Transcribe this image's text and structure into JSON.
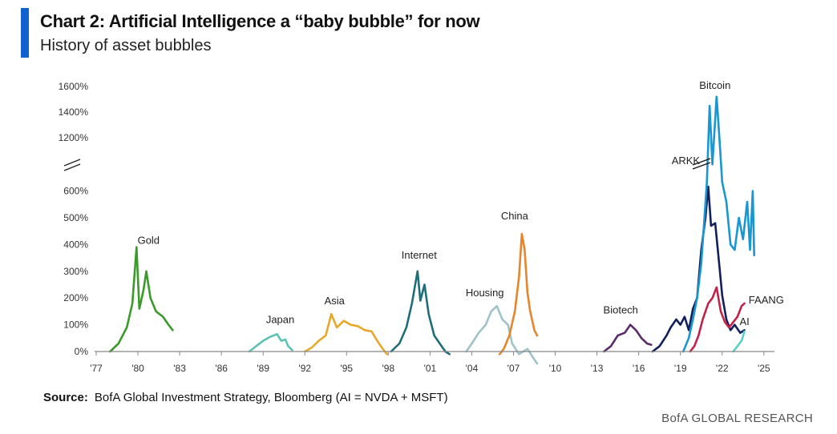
{
  "chart_data": {
    "type": "line",
    "title": "Chart 2: Artificial Intelligence a “baby bubble” for now",
    "subtitle": "History of asset bubbles",
    "xlabel": "",
    "ylabel": "",
    "x_ticks": [
      "'77",
      "'80",
      "'83",
      "'86",
      "'89",
      "'92",
      "'95",
      "'98",
      "'01",
      "'04",
      "'07",
      "'10",
      "'13",
      "'16",
      "'19",
      "'22",
      "'25"
    ],
    "xlim": [
      1977,
      2026
    ],
    "y_ticks": [
      "0%",
      "100%",
      "200%",
      "300%",
      "400%",
      "500%",
      "600%",
      "1200%",
      "1400%",
      "1600%"
    ],
    "y_axis_break": "between 600% and 1200%",
    "series": [
      {
        "name": "Gold",
        "color": "#3a9a2a",
        "points": [
          [
            1978.0,
            0
          ],
          [
            1978.6,
            30
          ],
          [
            1979.2,
            90
          ],
          [
            1979.6,
            180
          ],
          [
            1979.9,
            390
          ],
          [
            1980.1,
            160
          ],
          [
            1980.4,
            230
          ],
          [
            1980.6,
            300
          ],
          [
            1980.9,
            200
          ],
          [
            1981.3,
            150
          ],
          [
            1981.8,
            130
          ],
          [
            1982.2,
            100
          ],
          [
            1982.5,
            80
          ]
        ]
      },
      {
        "name": "Japan",
        "color": "#5bc2b4",
        "points": [
          [
            1988.0,
            0
          ],
          [
            1988.5,
            20
          ],
          [
            1989.0,
            40
          ],
          [
            1989.5,
            55
          ],
          [
            1990.0,
            65
          ],
          [
            1990.3,
            40
          ],
          [
            1990.6,
            45
          ],
          [
            1990.8,
            20
          ],
          [
            1991.1,
            5
          ]
        ]
      },
      {
        "name": "Asia",
        "color": "#e7a82a",
        "points": [
          [
            1992.0,
            0
          ],
          [
            1992.5,
            15
          ],
          [
            1993.0,
            40
          ],
          [
            1993.5,
            60
          ],
          [
            1993.9,
            140
          ],
          [
            1994.3,
            90
          ],
          [
            1994.8,
            115
          ],
          [
            1995.3,
            100
          ],
          [
            1995.8,
            95
          ],
          [
            1996.3,
            80
          ],
          [
            1996.8,
            75
          ],
          [
            1997.2,
            40
          ],
          [
            1997.6,
            10
          ],
          [
            1997.9,
            -10
          ]
        ]
      },
      {
        "name": "Internet",
        "color": "#1e6e7a",
        "points": [
          [
            1998.2,
            0
          ],
          [
            1998.8,
            30
          ],
          [
            1999.3,
            90
          ],
          [
            1999.7,
            180
          ],
          [
            2000.1,
            300
          ],
          [
            2000.3,
            190
          ],
          [
            2000.6,
            250
          ],
          [
            2000.9,
            140
          ],
          [
            2001.3,
            60
          ],
          [
            2001.7,
            30
          ],
          [
            2002.1,
            0
          ],
          [
            2002.4,
            -10
          ]
        ]
      },
      {
        "name": "Housing",
        "color": "#9fc3c8",
        "points": [
          [
            2003.6,
            0
          ],
          [
            2004.0,
            30
          ],
          [
            2004.5,
            70
          ],
          [
            2005.0,
            100
          ],
          [
            2005.4,
            150
          ],
          [
            2005.8,
            170
          ],
          [
            2006.2,
            120
          ],
          [
            2006.6,
            100
          ],
          [
            2006.9,
            30
          ],
          [
            2007.4,
            -10
          ],
          [
            2008.0,
            10
          ],
          [
            2008.5,
            -30
          ],
          [
            2008.7,
            -45
          ]
        ]
      },
      {
        "name": "China",
        "color": "#e8842c",
        "points": [
          [
            2006.0,
            -10
          ],
          [
            2006.3,
            10
          ],
          [
            2006.7,
            60
          ],
          [
            2007.1,
            150
          ],
          [
            2007.4,
            280
          ],
          [
            2007.6,
            440
          ],
          [
            2007.8,
            380
          ],
          [
            2008.0,
            220
          ],
          [
            2008.2,
            150
          ],
          [
            2008.5,
            80
          ],
          [
            2008.7,
            60
          ]
        ]
      },
      {
        "name": "Biotech",
        "color": "#5a2d6a",
        "points": [
          [
            2013.5,
            0
          ],
          [
            2014.0,
            20
          ],
          [
            2014.5,
            60
          ],
          [
            2015.0,
            70
          ],
          [
            2015.4,
            100
          ],
          [
            2015.8,
            80
          ],
          [
            2016.2,
            50
          ],
          [
            2016.6,
            30
          ],
          [
            2016.9,
            25
          ]
        ]
      },
      {
        "name": "ARKK",
        "color": "#13205c",
        "points": [
          [
            2017.0,
            0
          ],
          [
            2017.5,
            20
          ],
          [
            2018.0,
            60
          ],
          [
            2018.3,
            90
          ],
          [
            2018.7,
            120
          ],
          [
            2019.0,
            100
          ],
          [
            2019.3,
            130
          ],
          [
            2019.6,
            80
          ],
          [
            2019.9,
            160
          ],
          [
            2020.2,
            200
          ],
          [
            2020.5,
            380
          ],
          [
            2020.8,
            500
          ],
          [
            2021.0,
            650
          ],
          [
            2021.2,
            470
          ],
          [
            2021.5,
            480
          ],
          [
            2021.8,
            320
          ],
          [
            2022.0,
            210
          ],
          [
            2022.3,
            120
          ],
          [
            2022.6,
            80
          ],
          [
            2022.9,
            100
          ],
          [
            2023.3,
            70
          ],
          [
            2023.6,
            80
          ]
        ]
      },
      {
        "name": "Bitcoin",
        "color": "#1a96d0",
        "points": [
          [
            2019.2,
            0
          ],
          [
            2019.6,
            50
          ],
          [
            2019.9,
            120
          ],
          [
            2020.2,
            200
          ],
          [
            2020.5,
            330
          ],
          [
            2020.7,
            480
          ],
          [
            2020.9,
            700
          ],
          [
            2021.1,
            1450
          ],
          [
            2021.3,
            900
          ],
          [
            2021.6,
            1520
          ],
          [
            2021.8,
            1200
          ],
          [
            2022.0,
            700
          ],
          [
            2022.3,
            560
          ],
          [
            2022.6,
            400
          ],
          [
            2022.9,
            380
          ],
          [
            2023.2,
            500
          ],
          [
            2023.5,
            420
          ],
          [
            2023.8,
            560
          ],
          [
            2024.0,
            380
          ],
          [
            2024.2,
            600
          ],
          [
            2024.3,
            360
          ]
        ]
      },
      {
        "name": "FAANG",
        "color": "#c2224a",
        "points": [
          [
            2019.7,
            0
          ],
          [
            2020.0,
            20
          ],
          [
            2020.3,
            60
          ],
          [
            2020.6,
            120
          ],
          [
            2021.0,
            180
          ],
          [
            2021.3,
            200
          ],
          [
            2021.6,
            240
          ],
          [
            2021.9,
            150
          ],
          [
            2022.2,
            110
          ],
          [
            2022.5,
            90
          ],
          [
            2022.8,
            110
          ],
          [
            2023.1,
            130
          ],
          [
            2023.4,
            170
          ],
          [
            2023.6,
            180
          ]
        ]
      },
      {
        "name": "AI",
        "color": "#5bd0c6",
        "points": [
          [
            2022.8,
            0
          ],
          [
            2023.1,
            20
          ],
          [
            2023.4,
            40
          ],
          [
            2023.6,
            75
          ]
        ]
      }
    ],
    "annotations": [
      {
        "text": "Gold",
        "series": "Gold"
      },
      {
        "text": "Japan",
        "series": "Japan"
      },
      {
        "text": "Asia",
        "series": "Asia"
      },
      {
        "text": "Internet",
        "series": "Internet"
      },
      {
        "text": "Housing",
        "series": "Housing"
      },
      {
        "text": "China",
        "series": "China"
      },
      {
        "text": "Biotech",
        "series": "Biotech"
      },
      {
        "text": "ARKK",
        "series": "ARKK"
      },
      {
        "text": "Bitcoin",
        "series": "Bitcoin"
      },
      {
        "text": "FAANG",
        "series": "FAANG"
      },
      {
        "text": "AI",
        "series": "AI"
      }
    ],
    "legend": "none",
    "grid": false
  },
  "source_label": "Source:",
  "source_text": "BofA Global Investment Strategy, Bloomberg (AI = NVDA + MSFT)",
  "footer": "BofA GLOBAL RESEARCH"
}
